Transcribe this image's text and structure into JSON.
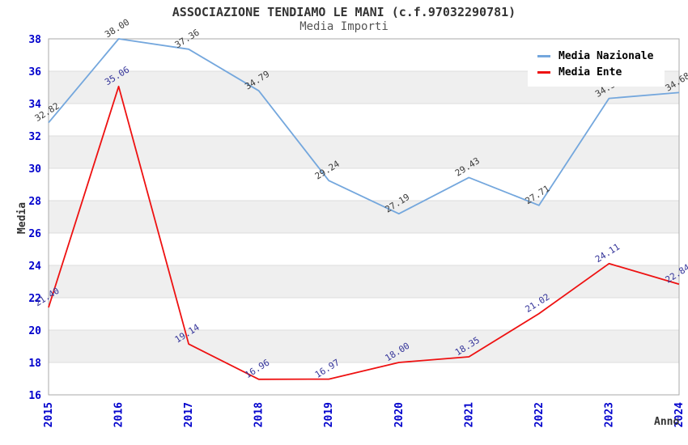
{
  "title": "ASSOCIAZIONE TENDIAMO LE MANI (c.f.97032290781)",
  "subtitle": "Media Importi",
  "chart_data": {
    "type": "line",
    "title": "ASSOCIAZIONE TENDIAMO LE MANI (c.f.97032290781)",
    "subtitle": "Media Importi",
    "xlabel": "Anno",
    "ylabel": "Media",
    "categories": [
      "2015",
      "2016",
      "2017",
      "2018",
      "2019",
      "2020",
      "2021",
      "2022",
      "2023",
      "2024"
    ],
    "series": [
      {
        "name": "Media Nazionale",
        "color": "#74A7DD",
        "label_color": "#3A3A3A",
        "values": [
          32.82,
          38.0,
          37.36,
          34.79,
          29.24,
          27.19,
          29.43,
          27.71,
          34.32,
          34.68
        ]
      },
      {
        "name": "Media Ente",
        "color": "#EE1111",
        "label_color": "#333399",
        "values": [
          21.4,
          35.06,
          19.14,
          16.96,
          16.97,
          18.0,
          18.35,
          21.02,
          24.11,
          22.84
        ]
      }
    ],
    "ylim": [
      16,
      38
    ],
    "ytick_step": 2,
    "legend_position": "top-right",
    "grid": "horizontal-bands",
    "colors": {
      "tick_label": "#0000CC",
      "band": "#EFEFEF",
      "frame": "#AAAAAA",
      "gridline": "#DCDCDC",
      "title": "#333333",
      "subtitle": "#555555",
      "axis_title": "#333333"
    }
  }
}
